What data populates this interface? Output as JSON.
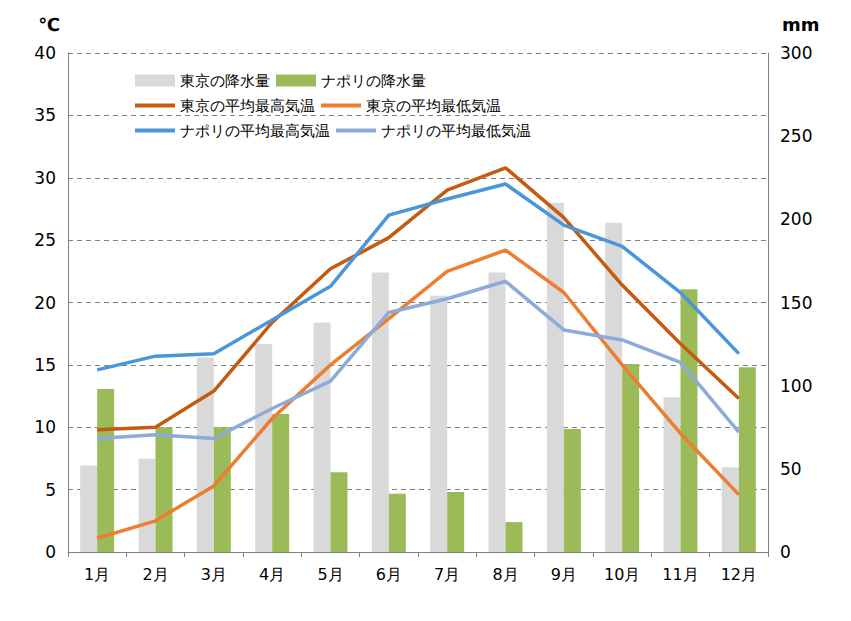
{
  "chart_data": {
    "type": "bar",
    "y_label": "℃",
    "y2_label": "mm",
    "categories": [
      "1月",
      "2月",
      "3月",
      "4月",
      "5月",
      "6月",
      "7月",
      "8月",
      "9月",
      "10月",
      "11月",
      "12月"
    ],
    "ylim": [
      0,
      40
    ],
    "yticks": [
      0,
      5,
      10,
      15,
      20,
      25,
      30,
      35,
      40
    ],
    "y2lim": [
      0,
      300
    ],
    "y2ticks": [
      0,
      50,
      100,
      150,
      200,
      250,
      300
    ],
    "grid": true,
    "legend": "top",
    "series": [
      {
        "name": "東京の降水量",
        "type": "bar",
        "axis": "y2",
        "color": "#d9d9d9",
        "values": [
          52,
          56,
          117,
          125,
          138,
          168,
          154,
          168,
          210,
          198,
          93,
          51
        ]
      },
      {
        "name": "ナポリの降水量",
        "type": "bar",
        "axis": "y2",
        "color": "#9bbb59",
        "values": [
          98,
          75,
          75,
          83,
          48,
          35,
          36,
          18,
          74,
          113,
          158,
          111
        ]
      },
      {
        "name": "東京の平均最高気温",
        "type": "line",
        "color": "#c55a11",
        "values": [
          9.8,
          10.0,
          12.9,
          18.4,
          22.7,
          25.2,
          29.0,
          30.8,
          26.8,
          21.4,
          16.7,
          12.3
        ]
      },
      {
        "name": "東京の平均最低気温",
        "type": "line",
        "color": "#ed7d31",
        "values": [
          1.1,
          2.5,
          5.3,
          10.7,
          15.0,
          18.7,
          22.5,
          24.2,
          20.8,
          15.0,
          9.5,
          4.6
        ]
      },
      {
        "name": "ナポリの平均最高気温",
        "type": "line",
        "color": "#4a96d9",
        "values": [
          14.6,
          15.7,
          15.9,
          18.6,
          21.3,
          27.0,
          28.3,
          29.5,
          26.2,
          24.5,
          20.8,
          15.9
        ]
      },
      {
        "name": "ナポリの平均最低気温",
        "type": "line",
        "color": "#8eaadb",
        "values": [
          9.1,
          9.4,
          9.1,
          11.5,
          13.7,
          19.2,
          20.3,
          21.7,
          17.8,
          17.0,
          15.2,
          9.6
        ]
      }
    ]
  }
}
